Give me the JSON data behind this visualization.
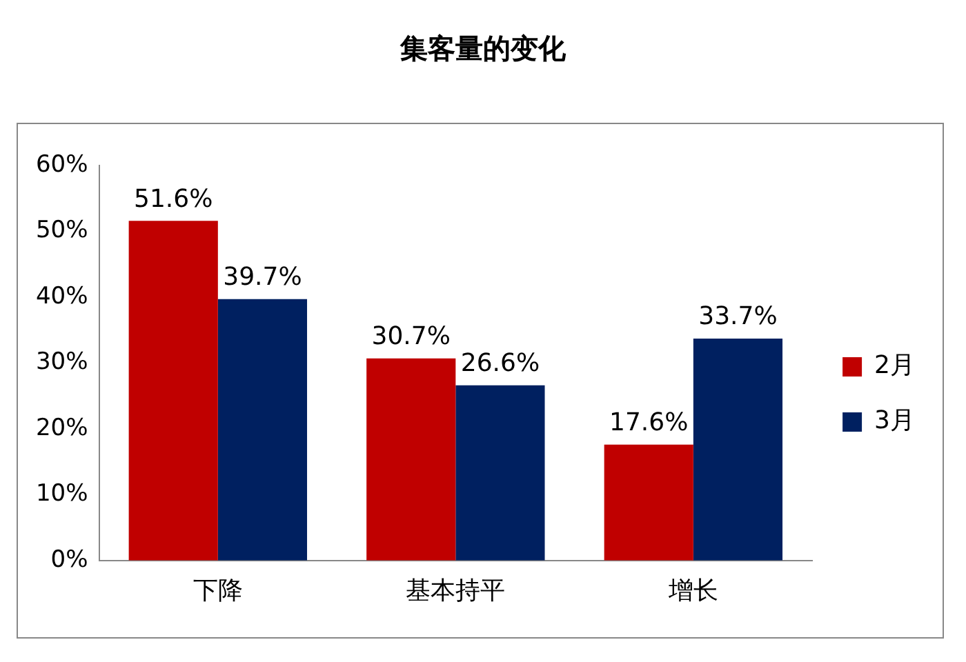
{
  "chart_data": {
    "type": "bar",
    "title": "集客量的变化",
    "categories": [
      "下降",
      "基本持平",
      "增长"
    ],
    "series": [
      {
        "name": "2月",
        "color": "#c00000",
        "values": [
          51.6,
          30.7,
          17.6
        ],
        "value_labels": [
          "51.6%",
          "30.7%",
          "17.6%"
        ]
      },
      {
        "name": "3月",
        "color": "#002060",
        "values": [
          39.7,
          26.6,
          33.7
        ],
        "value_labels": [
          "39.7%",
          "26.6%",
          "33.7%"
        ]
      }
    ],
    "ylim": [
      0,
      60
    ],
    "yticks": [
      {
        "value": 0,
        "label": "0%"
      },
      {
        "value": 10,
        "label": "10%"
      },
      {
        "value": 20,
        "label": "20%"
      },
      {
        "value": 30,
        "label": "30%"
      },
      {
        "value": 40,
        "label": "40%"
      },
      {
        "value": 50,
        "label": "50%"
      },
      {
        "value": 60,
        "label": "60%"
      }
    ],
    "grid": false,
    "legend": "right"
  }
}
